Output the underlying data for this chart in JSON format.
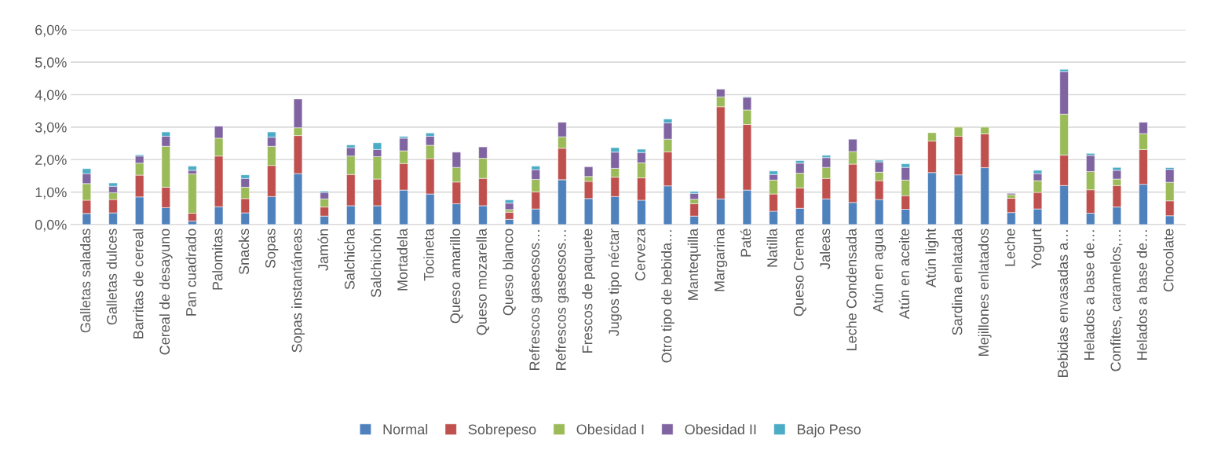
{
  "chart_data": {
    "type": "bar",
    "stacked": true,
    "categories": [
      "Galletas saladas",
      "Galletas dulces",
      "Barritas de cereal",
      "Cereal de desayuno",
      "Pan cuadrado",
      "Palomitas",
      "Snacks",
      "Sopas",
      "Sopas instantáneas",
      "Jamón",
      "Salchicha",
      "Salchichón",
      "Mortadela",
      "Tocineta",
      "Queso amarillo",
      "Queso mozarella",
      "Queso blanco",
      "Refrescos gaseosos…",
      "Refrescos gaseosos…",
      "Frescos de paquete",
      "Jugos tipo néctar",
      "Cerveza",
      "Otro tipo de bebida…",
      "Mantequilla",
      "Margarina",
      "Paté",
      "Natilla",
      "Queso Crema",
      "Jaleas",
      "Leche Condensada",
      "Atún en agua",
      "Atún en aceite",
      "Atún light",
      "Sardina enlatada",
      "Mejillones enlatados",
      "Leche",
      "Yogurt",
      "Bebidas envasadas a…",
      "Helados a base de…",
      "Confites, caramelos,…",
      "Helados a base de…",
      "Chocolate"
    ],
    "series": [
      {
        "name": "Normal",
        "color": "#4f81bd",
        "values": [
          0.34,
          0.36,
          0.85,
          0.52,
          0.11,
          0.55,
          0.36,
          0.86,
          1.57,
          0.26,
          0.58,
          0.58,
          1.06,
          0.94,
          0.64,
          0.58,
          0.16,
          0.48,
          1.38,
          0.8,
          0.86,
          0.75,
          1.19,
          0.26,
          0.79,
          1.06,
          0.41,
          0.5,
          0.79,
          0.68,
          0.77,
          0.47,
          1.6,
          1.53,
          1.75,
          0.37,
          0.48,
          1.2,
          0.35,
          0.54,
          1.24,
          0.27
        ]
      },
      {
        "name": "Sobrepeso",
        "color": "#c0504d",
        "values": [
          0.41,
          0.41,
          0.67,
          0.63,
          0.24,
          1.56,
          0.44,
          0.96,
          1.17,
          0.28,
          0.96,
          0.82,
          0.82,
          1.09,
          0.67,
          0.84,
          0.22,
          0.53,
          0.97,
          0.53,
          0.6,
          0.69,
          1.05,
          0.38,
          2.84,
          2.02,
          0.53,
          0.63,
          0.63,
          1.18,
          0.58,
          0.42,
          0.97,
          1.19,
          1.04,
          0.44,
          0.51,
          0.94,
          0.72,
          0.66,
          1.07,
          0.46
        ]
      },
      {
        "name": "Obesidad I",
        "color": "#9bbb59",
        "values": [
          0.51,
          0.21,
          0.37,
          1.26,
          1.21,
          0.55,
          0.35,
          0.59,
          0.24,
          0.25,
          0.57,
          0.69,
          0.39,
          0.41,
          0.45,
          0.62,
          0.08,
          0.38,
          0.35,
          0.15,
          0.27,
          0.46,
          0.39,
          0.14,
          0.3,
          0.45,
          0.43,
          0.45,
          0.34,
          0.39,
          0.26,
          0.48,
          0.26,
          0.28,
          0.21,
          0.11,
          0.36,
          1.26,
          0.56,
          0.2,
          0.49,
          0.57
        ]
      },
      {
        "name": "Obesidad II",
        "color": "#8064a2",
        "values": [
          0.31,
          0.2,
          0.22,
          0.31,
          0.11,
          0.37,
          0.27,
          0.28,
          0.89,
          0.2,
          0.26,
          0.22,
          0.39,
          0.28,
          0.47,
          0.35,
          0.2,
          0.3,
          0.45,
          0.3,
          0.5,
          0.32,
          0.5,
          0.18,
          0.24,
          0.39,
          0.17,
          0.31,
          0.3,
          0.38,
          0.32,
          0.39,
          null,
          null,
          null,
          0.04,
          0.22,
          1.31,
          0.5,
          0.27,
          0.35,
          0.4
        ]
      },
      {
        "name": "Bajo Peso",
        "color": "#4bacc6",
        "values": [
          0.15,
          0.1,
          0.04,
          0.13,
          0.13,
          null,
          0.11,
          0.16,
          null,
          0.04,
          0.08,
          0.21,
          0.05,
          0.1,
          null,
          null,
          0.1,
          0.11,
          null,
          null,
          0.14,
          0.1,
          0.12,
          0.06,
          null,
          0.02,
          0.11,
          0.08,
          0.07,
          null,
          0.05,
          0.11,
          null,
          null,
          null,
          null,
          0.1,
          0.07,
          0.06,
          0.09,
          null,
          0.05
        ]
      }
    ],
    "ylim": [
      0,
      6
    ],
    "yticks": [
      {
        "value": 0,
        "label": "0,0%"
      },
      {
        "value": 1,
        "label": "1,0%"
      },
      {
        "value": 2,
        "label": "2,0%"
      },
      {
        "value": 3,
        "label": "3,0%"
      },
      {
        "value": 4,
        "label": "4,0%"
      },
      {
        "value": 5,
        "label": "5,0%"
      },
      {
        "value": 6,
        "label": "6,0%"
      }
    ],
    "grid": "y",
    "legend": "bottom"
  }
}
